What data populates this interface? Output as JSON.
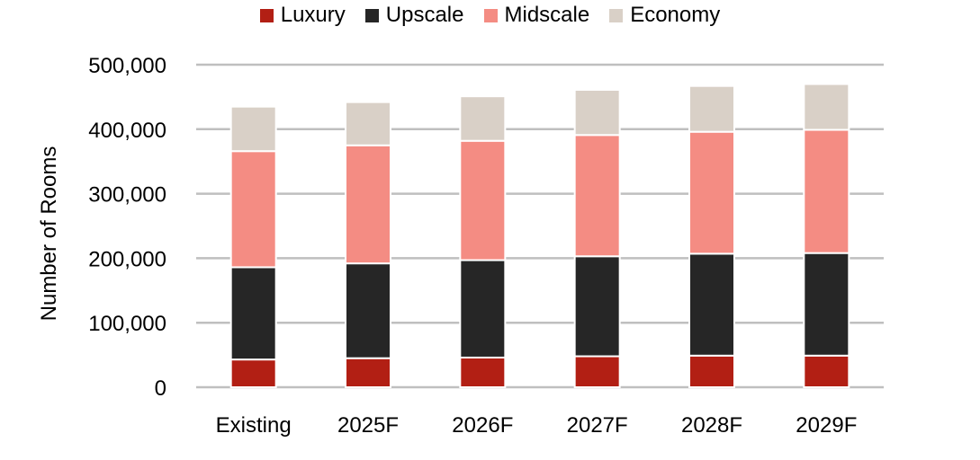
{
  "chart_data": {
    "type": "bar",
    "stacked": true,
    "categories": [
      "Existing",
      "2025F",
      "2026F",
      "2027F",
      "2028F",
      "2029F"
    ],
    "series": [
      {
        "name": "Luxury",
        "color": "#B21F14",
        "values": [
          43000,
          45000,
          46000,
          48000,
          49000,
          49000
        ]
      },
      {
        "name": "Upscale",
        "color": "#262626",
        "values": [
          143000,
          147000,
          151000,
          155000,
          158000,
          159000
        ]
      },
      {
        "name": "Midscale",
        "color": "#F48C83",
        "values": [
          180000,
          183000,
          185000,
          188000,
          189000,
          191000
        ]
      },
      {
        "name": "Economy",
        "color": "#D9D0C7",
        "values": [
          69000,
          67000,
          69000,
          70000,
          71000,
          71000
        ]
      }
    ],
    "ylabel": "Number of Rooms",
    "xlabel": "",
    "ylim": [
      0,
      500000
    ],
    "yticks": [
      "0",
      "100,000",
      "200,000",
      "300,000",
      "400,000",
      "500,000"
    ],
    "grid": true,
    "gridColor": "#BFBFBF",
    "legend_position": "top"
  }
}
